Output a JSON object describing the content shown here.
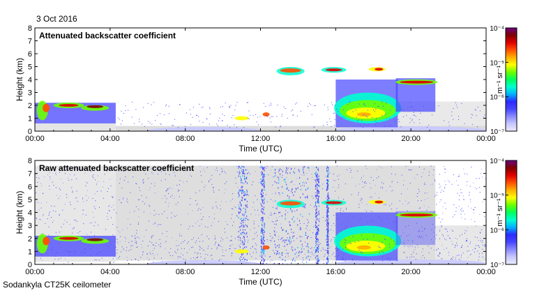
{
  "date": "3 Oct 2016",
  "footer": "Sodankyla CT25K ceilometer",
  "colors": {
    "frame": "#000000",
    "bg": "#ffffff",
    "clear_air": "#d3d3d3",
    "scale": [
      "#ebebff",
      "#c8c8ff",
      "#8a8aff",
      "#4646ff",
      "#2b2bff",
      "#00b0ff",
      "#00ffd0",
      "#00ff5a",
      "#6cff00",
      "#ffff00",
      "#ffb000",
      "#ff5000",
      "#e00000",
      "#800000",
      "#6a0080"
    ]
  },
  "chart_data": [
    {
      "type": "heatmap",
      "title": "Attenuated backscatter coefficient",
      "xlabel": "Time (UTC)",
      "ylabel": "Height (km)",
      "x_ticks": [
        "00:00",
        "04:00",
        "08:00",
        "12:00",
        "16:00",
        "20:00",
        "00:00"
      ],
      "x_range_hours": [
        0,
        24
      ],
      "y_ticks": [
        "0",
        "1",
        "2",
        "3",
        "4",
        "5",
        "6",
        "7",
        "8"
      ],
      "ylim": [
        0,
        8
      ],
      "colorbar": {
        "label": "m⁻¹ sr⁻¹",
        "scale": "log",
        "range": [
          1e-07,
          0.0001
        ],
        "tick_labels": [
          "10⁻⁷",
          "10⁻⁶",
          "10⁻⁵",
          "10⁻⁴"
        ]
      }
    },
    {
      "type": "heatmap",
      "title": "Raw attenuated backscatter coefficient",
      "xlabel": "Time (UTC)",
      "ylabel": "Height (km)",
      "x_ticks": [
        "00:00",
        "04:00",
        "08:00",
        "12:00",
        "16:00",
        "20:00",
        "00:00"
      ],
      "x_range_hours": [
        0,
        24
      ],
      "y_ticks": [
        "0",
        "1",
        "2",
        "3",
        "4",
        "5",
        "6",
        "7",
        "8"
      ],
      "ylim": [
        0,
        8
      ],
      "colorbar": {
        "label": "m⁻¹ sr⁻¹",
        "scale": "log",
        "range": [
          1e-07,
          0.0001
        ],
        "tick_labels": [
          "10⁻⁷",
          "10⁻⁶",
          "10⁻⁵",
          "10⁻⁴"
        ]
      }
    }
  ]
}
